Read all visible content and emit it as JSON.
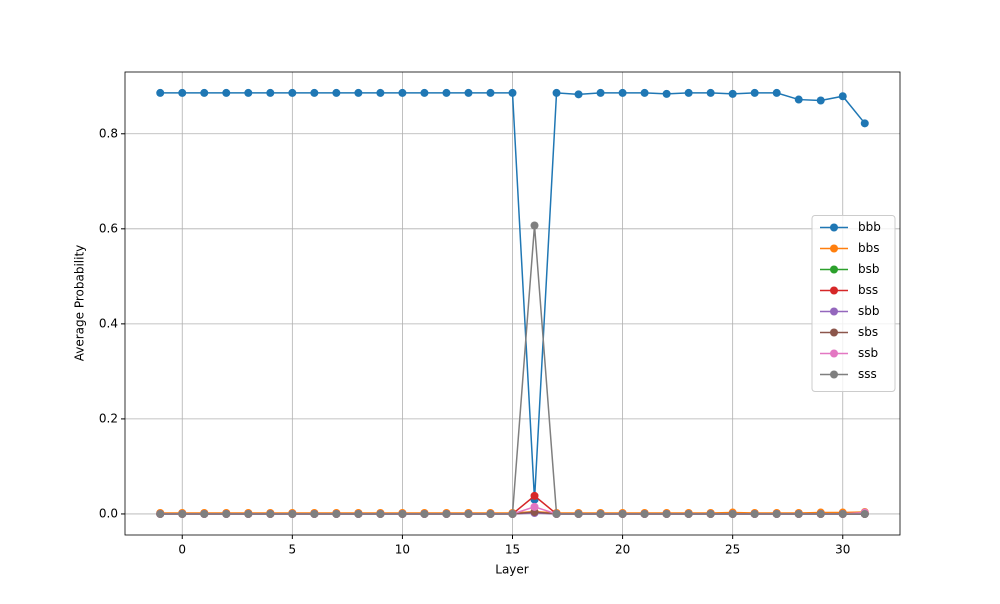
{
  "chart_data": {
    "type": "line",
    "x_label": "Layer",
    "y_label": "Average Probability",
    "x": [
      -1,
      0,
      1,
      2,
      3,
      4,
      5,
      6,
      7,
      8,
      9,
      10,
      11,
      12,
      13,
      14,
      15,
      16,
      17,
      18,
      19,
      20,
      21,
      22,
      23,
      24,
      25,
      26,
      27,
      28,
      29,
      30,
      31
    ],
    "series": [
      {
        "name": "bbb",
        "color": "#1f77b4",
        "values": [
          0.886,
          0.886,
          0.886,
          0.886,
          0.886,
          0.886,
          0.886,
          0.886,
          0.886,
          0.886,
          0.886,
          0.886,
          0.886,
          0.886,
          0.886,
          0.886,
          0.886,
          0.03,
          0.886,
          0.883,
          0.886,
          0.886,
          0.886,
          0.884,
          0.886,
          0.886,
          0.884,
          0.886,
          0.886,
          0.872,
          0.87,
          0.879,
          0.822
        ]
      },
      {
        "name": "bbs",
        "color": "#ff7f0e",
        "values": [
          0.002,
          0.002,
          0.002,
          0.002,
          0.002,
          0.002,
          0.002,
          0.002,
          0.002,
          0.002,
          0.002,
          0.002,
          0.002,
          0.002,
          0.002,
          0.002,
          0.002,
          0.005,
          0.002,
          0.002,
          0.002,
          0.002,
          0.002,
          0.002,
          0.002,
          0.002,
          0.003,
          0.002,
          0.002,
          0.002,
          0.003,
          0.003,
          0.004
        ]
      },
      {
        "name": "bsb",
        "color": "#2ca02c",
        "values": [
          0,
          0,
          0,
          0,
          0,
          0,
          0,
          0,
          0,
          0,
          0,
          0,
          0,
          0,
          0,
          0,
          0,
          0.003,
          0,
          0,
          0,
          0,
          0,
          0,
          0,
          0,
          0,
          0,
          0,
          0,
          0,
          0,
          0
        ]
      },
      {
        "name": "bss",
        "color": "#d62728",
        "values": [
          0,
          0,
          0,
          0,
          0,
          0,
          0,
          0,
          0,
          0,
          0,
          0,
          0,
          0,
          0,
          0,
          0,
          0.038,
          0,
          0,
          0,
          0,
          0,
          0,
          0,
          0,
          0,
          0,
          0,
          0,
          0,
          0,
          0
        ]
      },
      {
        "name": "sbb",
        "color": "#9467bd",
        "values": [
          0,
          0,
          0,
          0,
          0,
          0,
          0,
          0,
          0,
          0,
          0,
          0,
          0,
          0,
          0,
          0,
          0,
          0.002,
          0,
          0,
          0,
          0,
          0,
          0,
          0,
          0,
          0,
          0,
          0,
          0,
          0,
          0,
          0
        ]
      },
      {
        "name": "sbs",
        "color": "#8c564b",
        "values": [
          0,
          0,
          0,
          0,
          0,
          0,
          0,
          0,
          0,
          0,
          0,
          0,
          0,
          0,
          0,
          0,
          0,
          0.004,
          0,
          0,
          0,
          0,
          0,
          0,
          0,
          0,
          0,
          0,
          0,
          0,
          0,
          0,
          0
        ]
      },
      {
        "name": "ssb",
        "color": "#e377c2",
        "values": [
          0,
          0,
          0,
          0,
          0,
          0,
          0,
          0,
          0,
          0,
          0,
          0,
          0,
          0,
          0,
          0,
          0,
          0.015,
          0,
          0,
          0,
          0,
          0,
          0,
          0,
          0,
          0,
          0,
          0,
          0,
          0,
          0,
          0.003
        ]
      },
      {
        "name": "sss",
        "color": "#7f7f7f",
        "values": [
          0,
          0,
          0,
          0,
          0,
          0,
          0,
          0,
          0,
          0,
          0,
          0,
          0,
          0,
          0,
          0,
          0,
          0.607,
          0,
          0,
          0,
          0,
          0,
          0,
          0,
          0,
          0,
          0,
          0,
          0,
          0,
          0,
          0
        ]
      }
    ],
    "xlim": [
      -2.6,
      32.6
    ],
    "ylim": [
      -0.0443,
      0.93
    ],
    "xticks": [
      0,
      5,
      10,
      15,
      20,
      25,
      30
    ],
    "yticks": [
      {
        "value": 0,
        "label": "0.0"
      },
      0.2,
      0.4,
      0.6,
      0.8
    ],
    "grid": true,
    "legend": "center right"
  }
}
